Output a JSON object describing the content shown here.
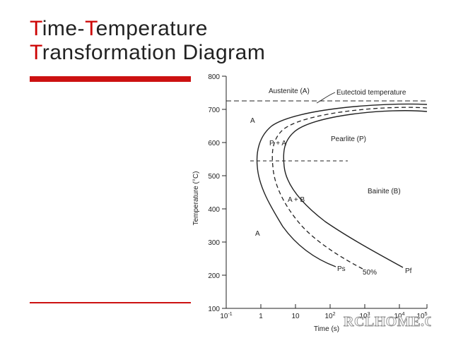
{
  "slide": {
    "title_line1": {
      "i1": "T",
      "r1": "ime-",
      "i2": "T",
      "r2": "emperature"
    },
    "title_line2": {
      "i1": "T",
      "r1": "ransformation Diagram"
    },
    "colors": {
      "title_initials": "#cc0000",
      "title_text": "#222222",
      "accent_bars": "#cc1111"
    }
  },
  "diagram": {
    "ylabel": "Temperature (°C)",
    "xlabel": "Time (s)",
    "y_ticks": [
      "800",
      "700",
      "600",
      "500",
      "400",
      "300",
      "200",
      "100"
    ],
    "x_ticks": {
      "e_m1": "10",
      "sup_m1": "-1",
      "one": "1",
      "ten": "10",
      "e2": "10",
      "sup2": "2",
      "e3": "10",
      "sup3": "3",
      "e4": "10",
      "sup4": "4",
      "e5": "10",
      "sup5": "5"
    },
    "labels": {
      "austenite": "Austenite (A)",
      "eutectoid": "Eutectoid temperature",
      "a_upper": "A",
      "p_plus_a": "P + A",
      "pearlite": "Pearlite (P)",
      "bainite": "Bainite (B)",
      "a_plus_b": "A + B",
      "a_lower": "A",
      "ps": "Ps",
      "fifty": "50%",
      "pf": "Pf"
    },
    "watermark": "RCLHOME.COM"
  }
}
